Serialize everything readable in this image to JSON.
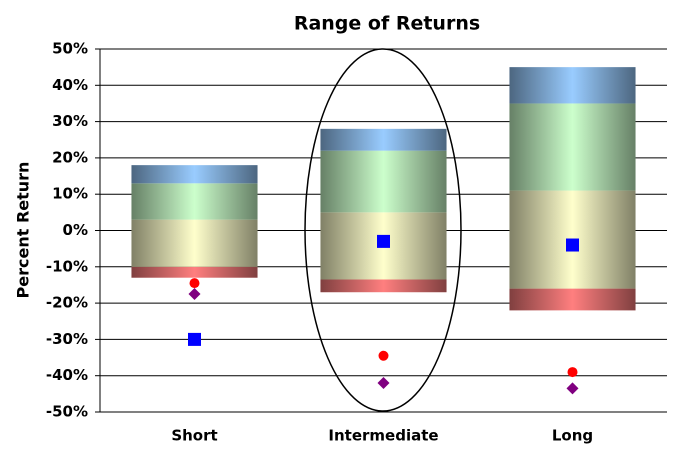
{
  "chart_data": {
    "type": "floating-bar",
    "title": "Range of Returns",
    "y_label": "Percent Return",
    "categories": [
      "Short",
      "Intermediate",
      "Long"
    ],
    "ylim": [
      -50,
      50
    ],
    "yticks": [
      {
        "value": -50,
        "label": "-50%"
      },
      {
        "value": -40,
        "label": "-40%"
      },
      {
        "value": -30,
        "label": "-30%"
      },
      {
        "value": -20,
        "label": "-20%"
      },
      {
        "value": -10,
        "label": "-10%"
      },
      {
        "value": 0,
        "label": "0%"
      },
      {
        "value": 10,
        "label": "10%"
      },
      {
        "value": 20,
        "label": "20%"
      },
      {
        "value": 30,
        "label": "30%"
      },
      {
        "value": 40,
        "label": "40%"
      },
      {
        "value": 50,
        "label": "50%"
      }
    ],
    "grid": true,
    "bands": [
      {
        "color": "#ff7f7f",
        "low": [
          -13,
          -17,
          -22
        ],
        "high": [
          -10,
          -13.5,
          -16
        ]
      },
      {
        "color": "#ffffcc",
        "low": [
          -10,
          -13.5,
          -16
        ],
        "high": [
          3,
          5,
          11
        ]
      },
      {
        "color": "#ccffcc",
        "low": [
          3,
          5,
          11
        ],
        "high": [
          13,
          22,
          35
        ]
      },
      {
        "color": "#99ccff",
        "low": [
          13,
          22,
          35
        ],
        "high": [
          18,
          28,
          45
        ]
      }
    ],
    "markers": [
      {
        "shape": "square",
        "color": "#0000ff",
        "values": [
          -30,
          -3,
          -4
        ]
      },
      {
        "shape": "circle",
        "color": "#ff0000",
        "values": [
          -14.5,
          -34.5,
          -39
        ]
      },
      {
        "shape": "diamond",
        "color": "#800080",
        "values": [
          -17.5,
          -42,
          -43.5
        ]
      }
    ]
  }
}
